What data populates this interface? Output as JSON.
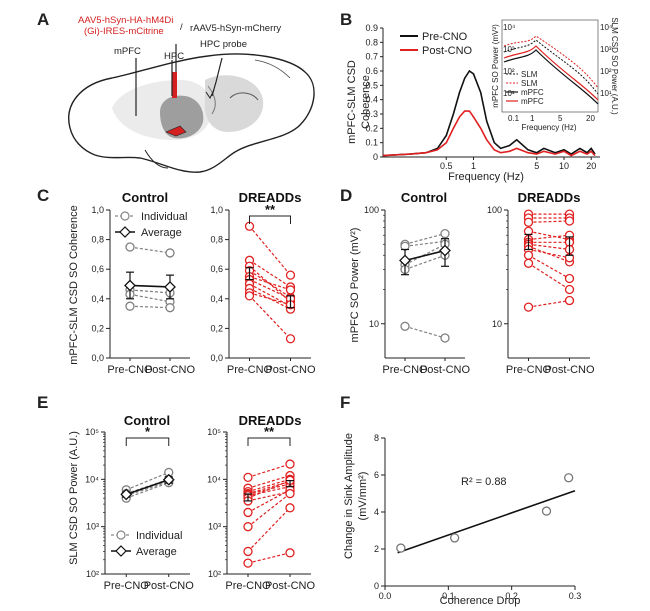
{
  "colors": {
    "control": "#808080",
    "dreadd": "#e02020",
    "black": "#111111",
    "brain_light": "#e6e6e6",
    "brain_dark": "#9a9a9a",
    "injection": "#d42020"
  },
  "panels": {
    "A": {
      "label": "A",
      "virus_red": [
        "AAV5-hSyn-HA-hM4Di",
        "(Gi)-IRES-mCitrine"
      ],
      "virus_black": "rAAV5-hSyn-mCherry",
      "slash": "/",
      "probe": "HPC probe",
      "mpfc": "mPFC",
      "hpc": "HPC"
    },
    "B": {
      "label": "B"
    },
    "C": {
      "label": "C"
    },
    "D": {
      "label": "D"
    },
    "E": {
      "label": "E"
    },
    "F": {
      "label": "F"
    }
  },
  "chart_data": [
    {
      "id": "B",
      "type": "line",
      "ylabel": [
        "mPFC-SLM CSD",
        "Coherence"
      ],
      "xlabel": "Frequency (Hz)",
      "xscale": "log",
      "xlim": [
        0.1,
        25
      ],
      "ylim": [
        0,
        0.9
      ],
      "xticks": [
        "0.5",
        "1",
        "5",
        "10",
        "20"
      ],
      "yticks": [
        "0",
        "0.1",
        "0.2",
        "0.3",
        "0.4",
        "0.5",
        "0.6",
        "0.7",
        "0.8",
        "0.9"
      ],
      "legend": [
        "Pre-CNO",
        "Post-CNO"
      ],
      "series": [
        {
          "name": "Pre-CNO",
          "x": [
            0.1,
            0.2,
            0.3,
            0.4,
            0.5,
            0.6,
            0.7,
            0.8,
            0.9,
            1.0,
            1.2,
            1.4,
            1.7,
            2.0,
            2.5,
            3,
            4,
            5,
            6,
            8,
            10,
            12,
            15,
            18,
            20,
            22
          ],
          "y": [
            0.01,
            0.02,
            0.03,
            0.06,
            0.15,
            0.3,
            0.45,
            0.55,
            0.6,
            0.58,
            0.45,
            0.25,
            0.1,
            0.06,
            0.08,
            0.12,
            0.05,
            0.03,
            0.06,
            0.03,
            0.05,
            0.02,
            0.06,
            0.03,
            0.06,
            0.02
          ]
        },
        {
          "name": "Post-CNO",
          "x": [
            0.1,
            0.2,
            0.3,
            0.4,
            0.5,
            0.6,
            0.7,
            0.8,
            0.9,
            1.0,
            1.2,
            1.4,
            1.7,
            2.0,
            2.5,
            3,
            4,
            5,
            6,
            8,
            10,
            12,
            15,
            18,
            20,
            22
          ],
          "y": [
            0.01,
            0.02,
            0.03,
            0.05,
            0.1,
            0.2,
            0.28,
            0.32,
            0.32,
            0.28,
            0.2,
            0.12,
            0.05,
            0.03,
            0.04,
            0.06,
            0.03,
            0.02,
            0.04,
            0.02,
            0.04,
            0.01,
            0.04,
            0.02,
            0.04,
            0.01
          ]
        }
      ],
      "inset": {
        "xlabel": "Frequency (Hz)",
        "ylabel_left": "mPFC SO Power (mV²)",
        "ylabel_right": "SLM CSD SO Power (A.U.)",
        "xticks": [
          "0.1",
          "1",
          "5",
          "20"
        ],
        "yticks_left": [
          "10⁰",
          "10¹",
          "10²",
          "10³",
          "10⁴"
        ],
        "yticks_right": [
          "10⁰",
          "10¹",
          "10²",
          "10³",
          "10⁴"
        ],
        "legend": [
          "SLM",
          "SLM",
          "mPFC",
          "mPFC"
        ]
      }
    },
    {
      "id": "C",
      "type": "line",
      "ylabel": "mPFC-SLM CSD SO Coherence",
      "ylim": [
        0,
        1.0
      ],
      "yticks": [
        "0,0",
        "0,2",
        "0,4",
        "0,6",
        "0,8",
        "1,0"
      ],
      "categories": [
        "Pre-CNO",
        "Post-CNO"
      ],
      "subplots": [
        {
          "title": "Control",
          "legend": [
            "Individual",
            "Average"
          ],
          "individual": [
            [
              0.75,
              0.71
            ],
            [
              0.46,
              0.44
            ],
            [
              0.43,
              0.38
            ],
            [
              0.35,
              0.34
            ]
          ],
          "average": [
            0.49,
            0.48
          ],
          "error": [
            0.09,
            0.08
          ]
        },
        {
          "title": "DREADDs",
          "sig": "**",
          "individual": [
            [
              0.89,
              0.56
            ],
            [
              0.66,
              0.48
            ],
            [
              0.62,
              0.38
            ],
            [
              0.59,
              0.41
            ],
            [
              0.55,
              0.46
            ],
            [
              0.53,
              0.4
            ],
            [
              0.5,
              0.35
            ],
            [
              0.47,
              0.33
            ],
            [
              0.44,
              0.36
            ],
            [
              0.42,
              0.13
            ]
          ],
          "average": [
            0.57,
            0.38
          ],
          "error": [
            0.04,
            0.04
          ]
        }
      ]
    },
    {
      "id": "D",
      "type": "line",
      "ylabel": "mPFC SO Power (mV²)",
      "yscale": "log",
      "ylim": [
        5,
        100
      ],
      "yticks": [
        "10",
        "100"
      ],
      "categories": [
        "Pre-CNO",
        "Post-CNO"
      ],
      "subplots": [
        {
          "title": "Control",
          "individual": [
            [
              50,
              62
            ],
            [
              48,
              53
            ],
            [
              33,
              50
            ],
            [
              30,
              40
            ],
            [
              9.5,
              7.5
            ]
          ],
          "average": [
            36,
            44
          ],
          "error": [
            9,
            12
          ]
        },
        {
          "title": "DREADDs",
          "individual": [
            [
              92,
              92
            ],
            [
              85,
              85
            ],
            [
              78,
              80
            ],
            [
              65,
              55
            ],
            [
              55,
              60
            ],
            [
              52,
              52
            ],
            [
              50,
              45
            ],
            [
              48,
              35
            ],
            [
              45,
              38
            ],
            [
              40,
              25
            ],
            [
              34,
              20
            ],
            [
              14,
              16
            ]
          ],
          "average": [
            53,
            49
          ],
          "error": [
            8,
            9
          ]
        }
      ]
    },
    {
      "id": "E",
      "type": "line",
      "ylabel": "SLM CSD SO Power (A.U.)",
      "yscale": "log",
      "ylim": [
        100,
        100000
      ],
      "yticks": [
        "10²",
        "10³",
        "10⁴",
        "10⁵"
      ],
      "categories": [
        "Pre-CNO",
        "Post-CNO"
      ],
      "subplots": [
        {
          "title": "Control",
          "sig": "*",
          "legend": [
            "Individual",
            "Average"
          ],
          "individual": [
            [
              6000,
              14000
            ],
            [
              5000,
              10000
            ],
            [
              4500,
              9000
            ],
            [
              4000,
              8500
            ]
          ],
          "average": [
            4800,
            9800
          ],
          "error": [
            600,
            1500
          ]
        },
        {
          "title": "DREADDs",
          "sig": "**",
          "individual": [
            [
              11000,
              21000
            ],
            [
              6500,
              12000
            ],
            [
              5500,
              10000
            ],
            [
              5000,
              9000
            ],
            [
              4800,
              8000
            ],
            [
              4500,
              7000
            ],
            [
              4000,
              9500
            ],
            [
              3500,
              5500
            ],
            [
              2000,
              6000
            ],
            [
              1000,
              5000
            ],
            [
              300,
              2500
            ],
            [
              170,
              280
            ]
          ],
          "average": [
            4200,
            8200
          ],
          "error": [
            700,
            1200
          ]
        }
      ]
    },
    {
      "id": "F",
      "type": "scatter",
      "xlabel": "Coherence Drop",
      "ylabel": [
        "Change in Sink Amplitude",
        "(mV/mm²)"
      ],
      "xlim": [
        0,
        0.3
      ],
      "ylim": [
        0,
        8
      ],
      "xticks": [
        "0.0",
        "0.1",
        "0.2",
        "0.3"
      ],
      "yticks": [
        "0",
        "2",
        "4",
        "6",
        "8"
      ],
      "points": [
        [
          0.025,
          2.05
        ],
        [
          0.11,
          2.6
        ],
        [
          0.255,
          4.05
        ],
        [
          0.29,
          5.85
        ]
      ],
      "fit": [
        [
          0.02,
          1.8
        ],
        [
          0.3,
          5.15
        ]
      ],
      "annotation": "R² = 0.88"
    }
  ]
}
